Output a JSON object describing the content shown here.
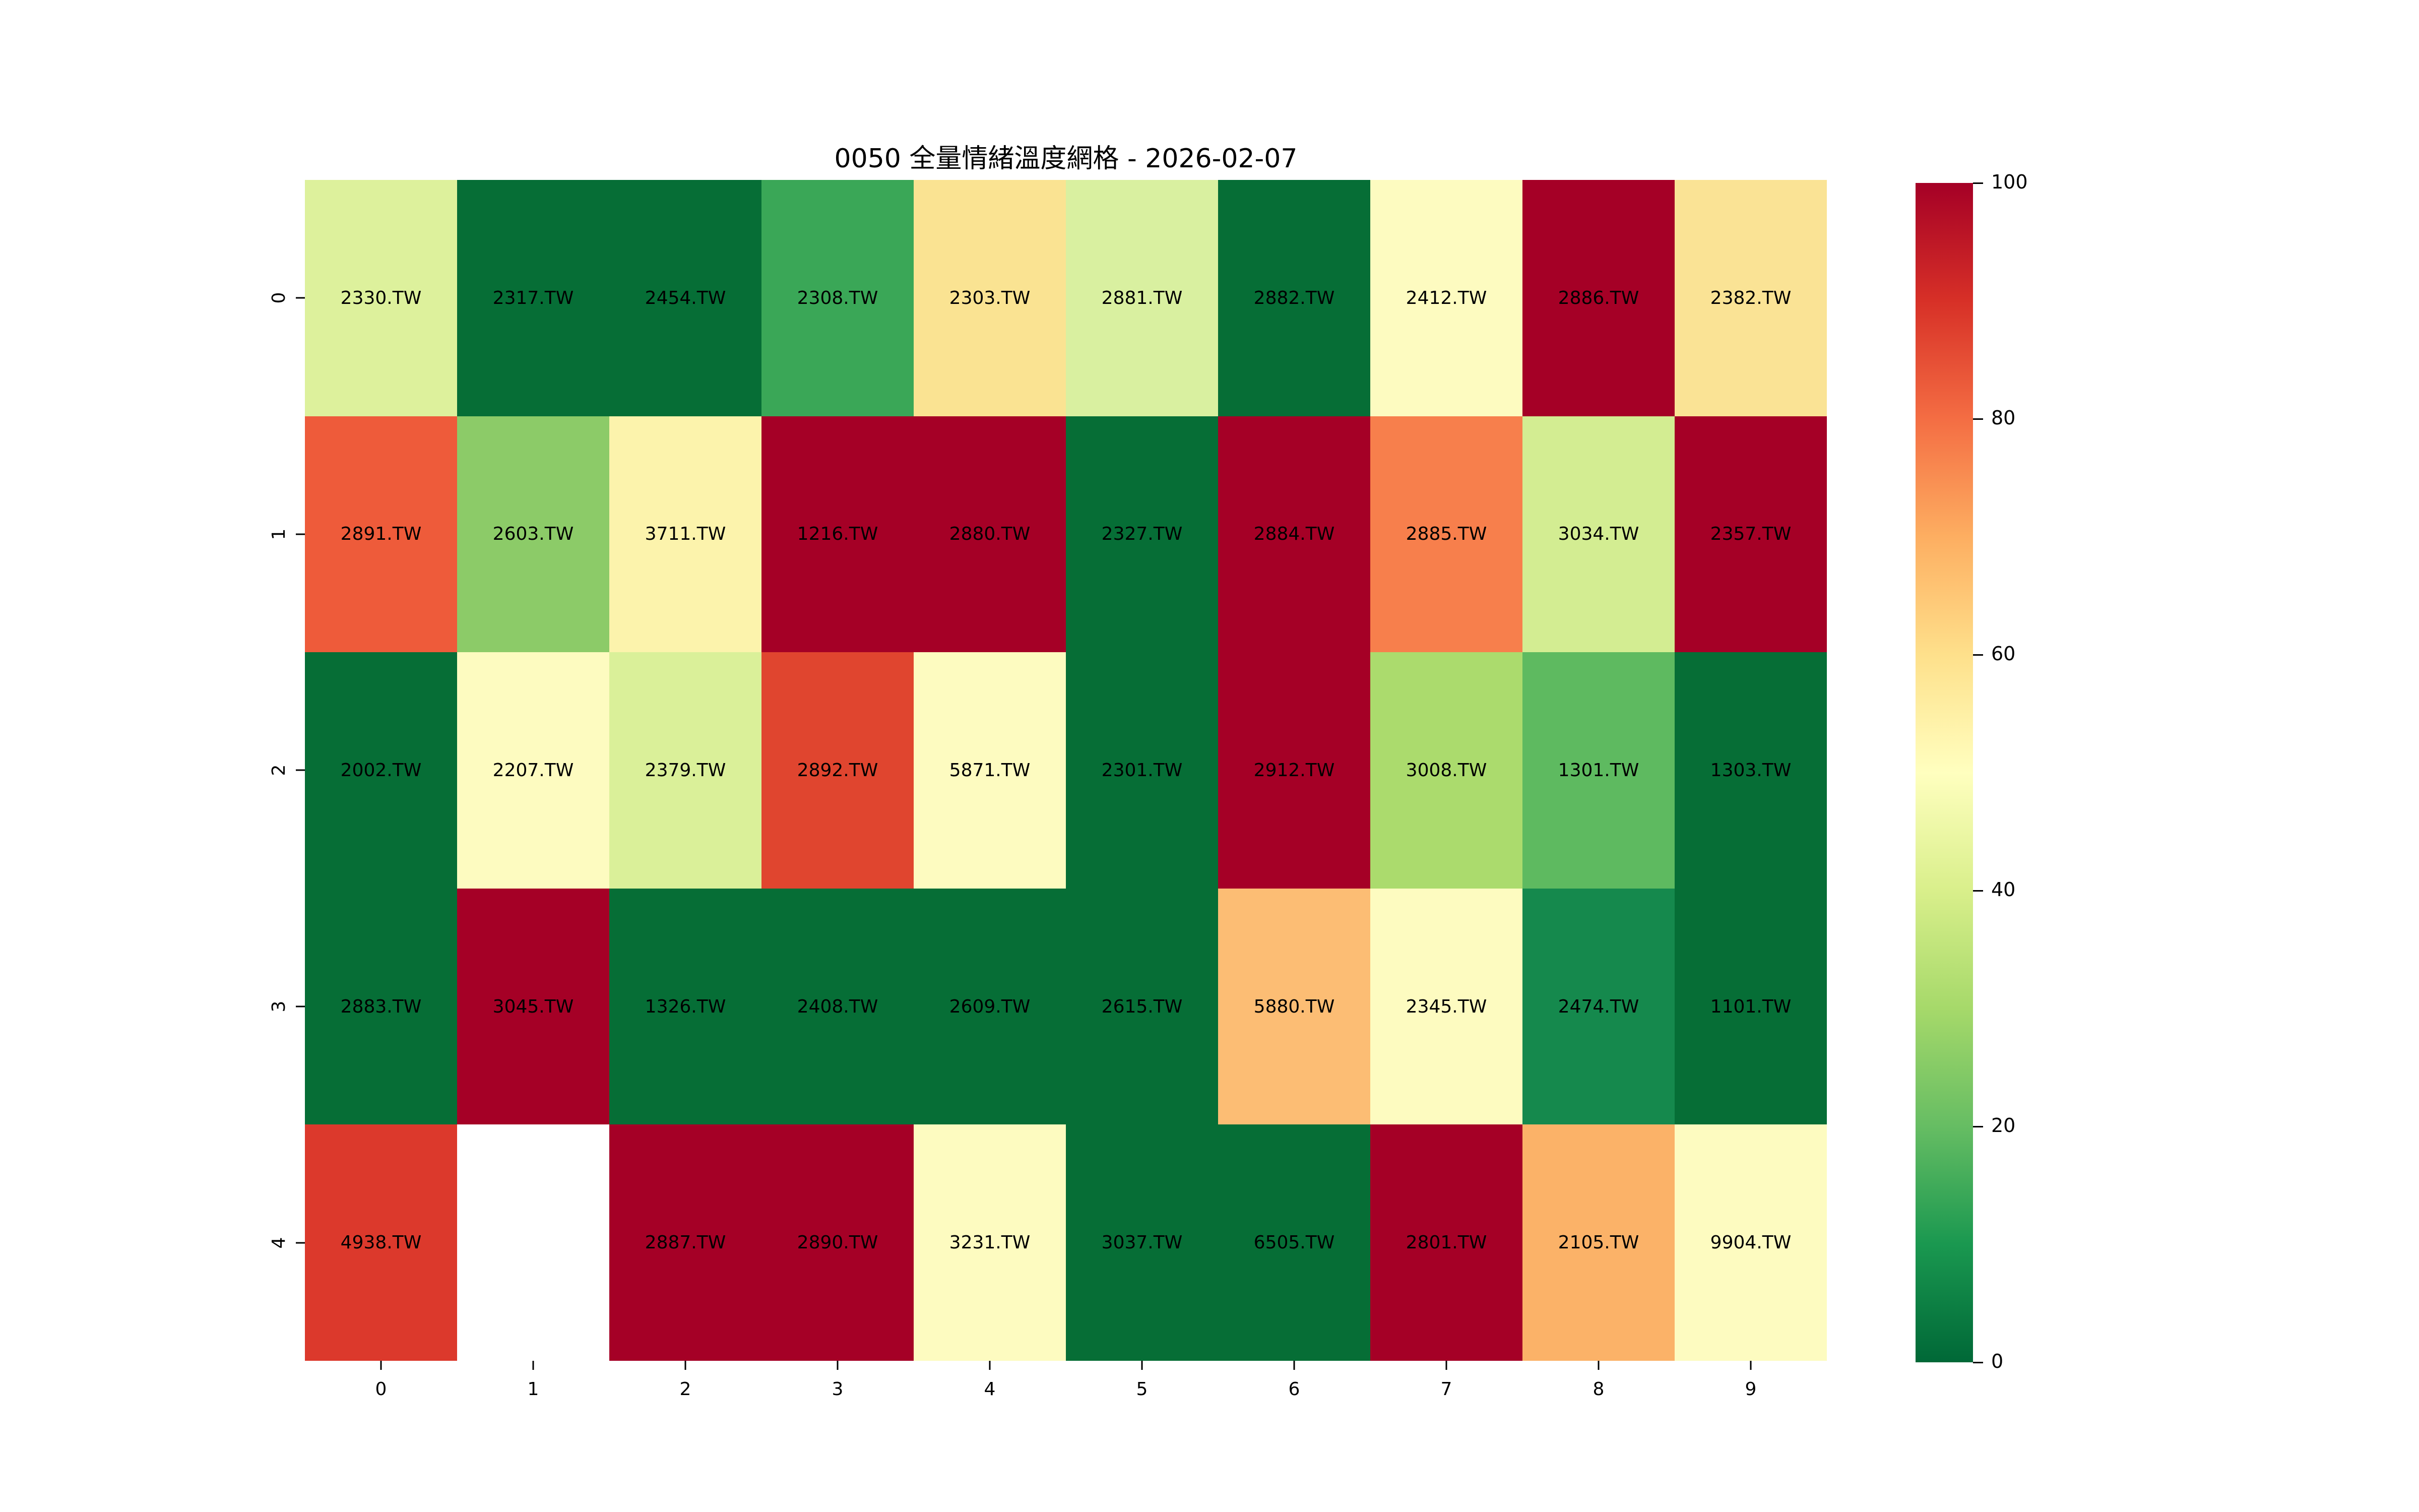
{
  "title": "0050 全量情緒溫度網格 - 2026-02-07",
  "chart_data": {
    "type": "heatmap",
    "title": "0050 全量情緒溫度網格 - 2026-02-07",
    "xlabel": "",
    "ylabel": "",
    "x_ticks": [
      "0",
      "1",
      "2",
      "3",
      "4",
      "5",
      "6",
      "7",
      "8",
      "9"
    ],
    "y_ticks": [
      "0",
      "1",
      "2",
      "3",
      "4"
    ],
    "value_range": [
      0,
      100
    ],
    "colormap": "RdYlGn_r",
    "grid": "off",
    "missing_cell_color": "#ffffff",
    "colorbar": {
      "position": "right",
      "min": 0,
      "max": 100,
      "ticks": [
        100,
        80,
        60,
        40,
        20,
        0
      ],
      "gradient_stops": [
        "#a50026 0%",
        "#d73027 10%",
        "#f46d43 20%",
        "#fdae61 30%",
        "#fee08b 40%",
        "#ffffbf 50%",
        "#d9ef8b 60%",
        "#a6d96a 70%",
        "#66bd63 80%",
        "#1a9850 90%",
        "#006837 100%"
      ]
    },
    "rows": [
      {
        "y": "0",
        "cells": [
          {
            "label": "2330.TW",
            "value": 42,
            "color": "#ddf19c"
          },
          {
            "label": "2317.TW",
            "value": 2,
            "color": "#066e36"
          },
          {
            "label": "2454.TW",
            "value": 2,
            "color": "#066e36"
          },
          {
            "label": "2308.TW",
            "value": 15,
            "color": "#3aa757"
          },
          {
            "label": "2303.TW",
            "value": 59,
            "color": "#fae392"
          },
          {
            "label": "2881.TW",
            "value": 42,
            "color": "#d9f0a0"
          },
          {
            "label": "2882.TW",
            "value": 2,
            "color": "#066e36"
          },
          {
            "label": "2412.TW",
            "value": 51,
            "color": "#fdfbc0"
          },
          {
            "label": "2886.TW",
            "value": 99,
            "color": "#a50026"
          },
          {
            "label": "2382.TW",
            "value": 59,
            "color": "#fae395"
          }
        ]
      },
      {
        "y": "1",
        "cells": [
          {
            "label": "2891.TW",
            "value": 84,
            "color": "#ee5b3a"
          },
          {
            "label": "2603.TW",
            "value": 26,
            "color": "#8ccb68"
          },
          {
            "label": "3711.TW",
            "value": 53,
            "color": "#fcf3ac"
          },
          {
            "label": "1216.TW",
            "value": 99,
            "color": "#a50026"
          },
          {
            "label": "2880.TW",
            "value": 99,
            "color": "#a50026"
          },
          {
            "label": "2327.TW",
            "value": 2,
            "color": "#066e36"
          },
          {
            "label": "2884.TW",
            "value": 99,
            "color": "#a50026"
          },
          {
            "label": "2885.TW",
            "value": 77,
            "color": "#f77f4c"
          },
          {
            "label": "3034.TW",
            "value": 39,
            "color": "#d3ed92"
          },
          {
            "label": "2357.TW",
            "value": 99,
            "color": "#a50026"
          }
        ]
      },
      {
        "y": "2",
        "cells": [
          {
            "label": "2002.TW",
            "value": 2,
            "color": "#066e36"
          },
          {
            "label": "2207.TW",
            "value": 51,
            "color": "#fdfbc0"
          },
          {
            "label": "2379.TW",
            "value": 41,
            "color": "#daf099"
          },
          {
            "label": "2892.TW",
            "value": 87,
            "color": "#e0452f"
          },
          {
            "label": "5871.TW",
            "value": 51,
            "color": "#fdfbc0"
          },
          {
            "label": "2301.TW",
            "value": 2,
            "color": "#066e36"
          },
          {
            "label": "2912.TW",
            "value": 99,
            "color": "#a50026"
          },
          {
            "label": "3008.TW",
            "value": 30,
            "color": "#abdb6d"
          },
          {
            "label": "1301.TW",
            "value": 21,
            "color": "#5eba60"
          },
          {
            "label": "1303.TW",
            "value": 2,
            "color": "#066e36"
          }
        ]
      },
      {
        "y": "3",
        "cells": [
          {
            "label": "2883.TW",
            "value": 2,
            "color": "#066e36"
          },
          {
            "label": "3045.TW",
            "value": 99,
            "color": "#a50026"
          },
          {
            "label": "1326.TW",
            "value": 2,
            "color": "#066e36"
          },
          {
            "label": "2408.TW",
            "value": 2,
            "color": "#066e36"
          },
          {
            "label": "2609.TW",
            "value": 2,
            "color": "#066e36"
          },
          {
            "label": "2615.TW",
            "value": 2,
            "color": "#066e36"
          },
          {
            "label": "5880.TW",
            "value": 71,
            "color": "#fcbd74"
          },
          {
            "label": "2345.TW",
            "value": 51,
            "color": "#fdfbc0"
          },
          {
            "label": "2474.TW",
            "value": 9,
            "color": "#15894d"
          },
          {
            "label": "1101.TW",
            "value": 2,
            "color": "#066e36"
          }
        ]
      },
      {
        "y": "4",
        "cells": [
          {
            "label": "4938.TW",
            "value": 88,
            "color": "#dc392c"
          },
          {
            "label": "",
            "value": null,
            "color": "#ffffff"
          },
          {
            "label": "2887.TW",
            "value": 99,
            "color": "#a50026"
          },
          {
            "label": "2890.TW",
            "value": 99,
            "color": "#a50026"
          },
          {
            "label": "3231.TW",
            "value": 51,
            "color": "#fdfbc0"
          },
          {
            "label": "3037.TW",
            "value": 2,
            "color": "#066e36"
          },
          {
            "label": "6505.TW",
            "value": 2,
            "color": "#066e36"
          },
          {
            "label": "2801.TW",
            "value": 99,
            "color": "#a50026"
          },
          {
            "label": "2105.TW",
            "value": 73,
            "color": "#fbb268"
          },
          {
            "label": "9904.TW",
            "value": 51,
            "color": "#fdfbc0"
          }
        ]
      }
    ]
  }
}
